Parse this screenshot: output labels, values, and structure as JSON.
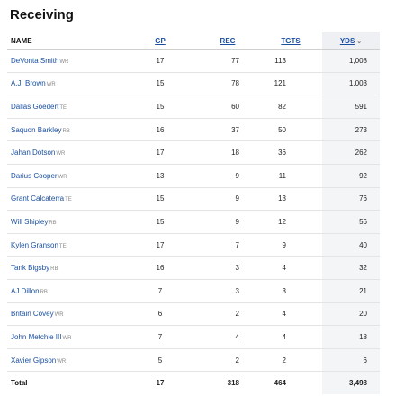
{
  "title": "Receiving",
  "columns": {
    "name": "NAME",
    "gp": "GP",
    "rec": "REC",
    "tgts": "TGTS",
    "yds": "YDS",
    "yds_sort_icon": "chevron-down-icon"
  },
  "rows": [
    {
      "name": "DeVonta Smith",
      "pos": "WR",
      "gp": "17",
      "rec": "77",
      "tgts": "113",
      "yds": "1,008"
    },
    {
      "name": "A.J. Brown",
      "pos": "WR",
      "gp": "15",
      "rec": "78",
      "tgts": "121",
      "yds": "1,003"
    },
    {
      "name": "Dallas Goedert",
      "pos": "TE",
      "gp": "15",
      "rec": "60",
      "tgts": "82",
      "yds": "591"
    },
    {
      "name": "Saquon Barkley",
      "pos": "RB",
      "gp": "16",
      "rec": "37",
      "tgts": "50",
      "yds": "273"
    },
    {
      "name": "Jahan Dotson",
      "pos": "WR",
      "gp": "17",
      "rec": "18",
      "tgts": "36",
      "yds": "262"
    },
    {
      "name": "Darius Cooper",
      "pos": "WR",
      "gp": "13",
      "rec": "9",
      "tgts": "11",
      "yds": "92"
    },
    {
      "name": "Grant Calcaterra",
      "pos": "TE",
      "gp": "15",
      "rec": "9",
      "tgts": "13",
      "yds": "76"
    },
    {
      "name": "Will Shipley",
      "pos": "RB",
      "gp": "15",
      "rec": "9",
      "tgts": "12",
      "yds": "56"
    },
    {
      "name": "Kylen Granson",
      "pos": "TE",
      "gp": "17",
      "rec": "7",
      "tgts": "9",
      "yds": "40"
    },
    {
      "name": "Tank Bigsby",
      "pos": "RB",
      "gp": "16",
      "rec": "3",
      "tgts": "4",
      "yds": "32"
    },
    {
      "name": "AJ Dillon",
      "pos": "RB",
      "gp": "7",
      "rec": "3",
      "tgts": "3",
      "yds": "21"
    },
    {
      "name": "Britain Covey",
      "pos": "WR",
      "gp": "6",
      "rec": "2",
      "tgts": "4",
      "yds": "20"
    },
    {
      "name": "John Metchie III",
      "pos": "WR",
      "gp": "7",
      "rec": "4",
      "tgts": "4",
      "yds": "18"
    },
    {
      "name": "Xavier Gipson",
      "pos": "WR",
      "gp": "5",
      "rec": "2",
      "tgts": "2",
      "yds": "6"
    }
  ],
  "total": {
    "label": "Total",
    "gp": "17",
    "rec": "318",
    "tgts": "464",
    "yds": "3,498"
  },
  "colors": {
    "link": "#1a4fa0",
    "sorted_column_bg": "#f4f5f7",
    "row_border": "#e4e4e4"
  }
}
